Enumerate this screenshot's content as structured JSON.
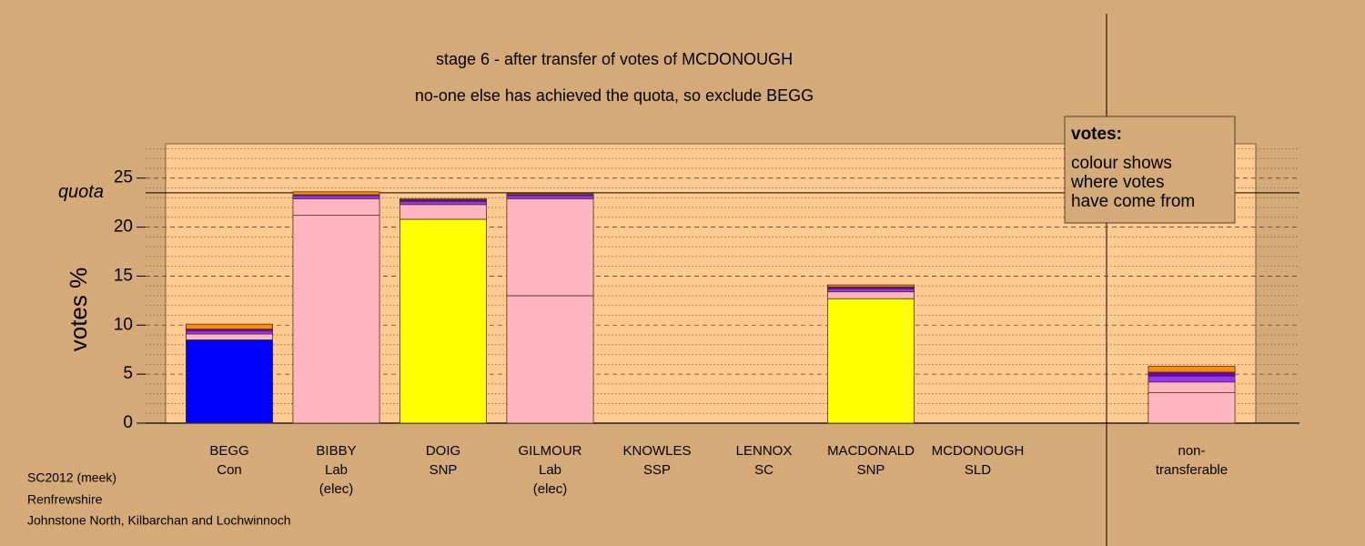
{
  "chart_data": {
    "type": "stacked-bar",
    "title": "stage 6 - after transfer of votes of MCDONOUGH",
    "subtitle": "no-one else has achieved the quota, so exclude BEGG",
    "ylabel": "votes %",
    "quota_label": "quota",
    "quota": 23.5,
    "categories": [
      [
        "BEGG",
        "Con"
      ],
      [
        "BIBBY",
        "Lab",
        "(elec)"
      ],
      [
        "DOIG",
        "SNP"
      ],
      [
        "GILMOUR",
        "Lab",
        "(elec)"
      ],
      [
        "KNOWLES",
        "SSP"
      ],
      [
        "LENNOX",
        "SC"
      ],
      [
        "MACDONALD",
        "SNP"
      ],
      [
        "MCDONOUGH",
        "SLD"
      ],
      null,
      [
        "non-",
        "transferable"
      ]
    ],
    "series": [
      {
        "color": "#0000ff",
        "values": [
          8.5,
          0,
          0,
          0,
          0,
          0,
          0,
          0,
          0,
          0
        ]
      },
      {
        "color": "#ffb6c1",
        "values": [
          0,
          21.2,
          0,
          13.0,
          0,
          0,
          0,
          0,
          0,
          3.1
        ]
      },
      {
        "color": "#ffff00",
        "values": [
          0,
          0,
          20.8,
          0,
          0,
          0,
          12.7,
          0,
          0,
          0
        ]
      },
      {
        "color": "#ffb6c1",
        "values": [
          0.6,
          1.7,
          1.5,
          9.9,
          0,
          0,
          0.7,
          0,
          0,
          1.1
        ]
      },
      {
        "color": "#9b30ff",
        "values": [
          0.3,
          0.3,
          0.3,
          0.3,
          0,
          0,
          0.3,
          0,
          0,
          0.6
        ]
      },
      {
        "color": "#6a00b8",
        "values": [
          0.2,
          0.1,
          0.2,
          0.1,
          0,
          0,
          0.2,
          0,
          0,
          0.4
        ]
      },
      {
        "color": "#ff8c00",
        "values": [
          0.5,
          0.3,
          0.1,
          0.1,
          0,
          0,
          0.2,
          0,
          0,
          0.6
        ]
      }
    ],
    "ylim": [
      0,
      28.5
    ],
    "yticks": [
      0,
      5,
      10,
      15,
      20,
      25
    ],
    "minor_yticks": [
      1,
      2,
      3,
      4,
      6,
      7,
      8,
      9,
      11,
      12,
      13,
      14,
      16,
      17,
      18,
      19,
      21,
      22,
      23,
      24,
      26,
      27,
      28
    ],
    "grid": true,
    "legend": {
      "title": "votes:",
      "lines": [
        "colour shows",
        "where votes",
        "have come from"
      ]
    }
  },
  "footer": [
    "SC2012 (meek)",
    "Renfrewshire",
    "Johnstone North, Kilbarchan and Lochwinnoch"
  ]
}
